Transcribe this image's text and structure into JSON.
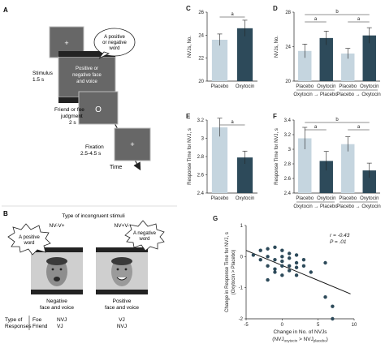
{
  "panel_labels": {
    "A": "A",
    "B": "B",
    "C": "C",
    "D": "D",
    "E": "E",
    "F": "F",
    "G": "G"
  },
  "panel_a": {
    "plus": "+",
    "bubble_line1": "A positive",
    "bubble_line2": "or negative",
    "bubble_line3": "word",
    "face_line1": "Positive or",
    "face_line2": "negative face",
    "face_line3": "and voice",
    "circle": "O",
    "stim_line1": "Stimulus",
    "stim_line2": "1.5 s",
    "judge_line1": "Friend or foe",
    "judge_line2": "judgment",
    "judge_line3": "2 s",
    "fix_line1": "Fixation",
    "fix_line2": "2.5-4.5 s",
    "time_label": "Time"
  },
  "panel_b": {
    "title": "Type of incongruent stimuli",
    "nv1": "NV-V+",
    "nv2": "NV+V-",
    "bubble1_line1": "A positive",
    "bubble1_line2": "word",
    "bubble2_line1": "A negative",
    "bubble2_line2": "word",
    "cap1_line1": "Negative",
    "cap1_line2": "face and voice",
    "cap2_line1": "Positive",
    "cap2_line2": "face and voice",
    "type_of": "Type of",
    "responses": "Responses",
    "foe": "Foe",
    "friend": "Friend",
    "foe_1": "NVJ",
    "friend_1": "VJ",
    "foe_2": "VJ",
    "friend_2": "NVJ"
  },
  "colors": {
    "placebo": "#c5d5df",
    "oxytocin": "#2d4a5a",
    "frame": "#b8b8b8",
    "screen": "#676767"
  },
  "chart_data": [
    {
      "panel": "C",
      "type": "bar",
      "categories": [
        "Placebo",
        "Oxytocin"
      ],
      "values": [
        23.6,
        24.6
      ],
      "errors": [
        0.5,
        0.7
      ],
      "ylabel": "NVJs, No.",
      "ylim": [
        20,
        26
      ],
      "yticks": [
        20,
        22,
        24,
        26
      ],
      "sig": [
        "a"
      ]
    },
    {
      "panel": "D",
      "type": "bar",
      "categories": [
        "Placebo",
        "Oxytocin",
        "Placebo",
        "Oxytocin"
      ],
      "groups": [
        "Oxytocin → Placebo",
        "Placebo → Oxytocin"
      ],
      "values": [
        23.5,
        25.0,
        23.2,
        25.3
      ],
      "errors": [
        0.8,
        0.8,
        0.6,
        0.9
      ],
      "ylabel": "NVJs, No.",
      "ylim": [
        20,
        28
      ],
      "yticks": [
        20,
        24,
        28
      ],
      "sig": [
        "a",
        "a",
        "b"
      ]
    },
    {
      "panel": "E",
      "type": "bar",
      "categories": [
        "Placebo",
        "Oxytocin"
      ],
      "values": [
        3.12,
        2.79
      ],
      "errors": [
        0.1,
        0.07
      ],
      "ylabel": "Response Time for NVJ, s",
      "ylim": [
        2.4,
        3.2
      ],
      "yticks": [
        2.4,
        2.6,
        2.8,
        3.0,
        3.2
      ],
      "sig": [
        "a"
      ]
    },
    {
      "panel": "F",
      "type": "bar",
      "categories": [
        "Placebo",
        "Oxytocin",
        "Placebo",
        "Oxytocin"
      ],
      "groups": [
        "Oxytocin → Placebo",
        "Placebo → Oxytocin"
      ],
      "values": [
        3.15,
        2.84,
        3.07,
        2.71
      ],
      "errors": [
        0.15,
        0.13,
        0.1,
        0.1
      ],
      "ylabel": "Response Time for NVJ, s",
      "ylim": [
        2.4,
        3.4
      ],
      "yticks": [
        2.4,
        2.6,
        2.8,
        3.0,
        3.2,
        3.4
      ],
      "sig": [
        "a",
        "a",
        "b"
      ]
    },
    {
      "panel": "G",
      "type": "scatter",
      "xlabel": "Change in No. of NVJs",
      "xlabel2": "(NVJ",
      "xlabel_sub1": "oxytocin",
      "xlabel_mid": " > NVJ",
      "xlabel_sub2": "placebo",
      "xlabel_end": ")",
      "ylabel_line1": "Change in Response Time for NVJ, s",
      "ylabel_line2": "(Oxytocin > Placebo)",
      "xlim": [
        -5,
        10
      ],
      "xticks": [
        -5,
        0,
        5,
        10
      ],
      "ylim": [
        -2,
        1
      ],
      "yticks": [
        -2,
        -1,
        0,
        1
      ],
      "stat_r": "r = -0.43",
      "stat_p": "P = .01",
      "points": [
        [
          -4,
          0.05
        ],
        [
          -3,
          0.2
        ],
        [
          -3,
          -0.1
        ],
        [
          -2,
          0.25
        ],
        [
          -2,
          0.0
        ],
        [
          -2,
          -0.3
        ],
        [
          -1,
          0.3
        ],
        [
          -1,
          -0.1
        ],
        [
          -1,
          -0.4
        ],
        [
          -1,
          -0.5
        ],
        [
          0,
          0.2
        ],
        [
          0,
          0.0
        ],
        [
          0,
          -0.15
        ],
        [
          0,
          -0.3
        ],
        [
          0,
          -0.6
        ],
        [
          1,
          0.1
        ],
        [
          1,
          -0.05
        ],
        [
          1,
          -0.3
        ],
        [
          1,
          -0.45
        ],
        [
          2,
          0.05
        ],
        [
          2,
          -0.2
        ],
        [
          2,
          -0.35
        ],
        [
          2,
          -0.6
        ],
        [
          3,
          -0.1
        ],
        [
          3,
          -0.3
        ],
        [
          4,
          -0.5
        ],
        [
          6,
          -0.2
        ],
        [
          6,
          -1.3
        ],
        [
          7,
          -1.6
        ],
        [
          7,
          -2.0
        ],
        [
          -2,
          -0.75
        ]
      ],
      "fit": [
        [
          -5,
          0.2
        ],
        [
          9.5,
          -1.2
        ]
      ]
    }
  ]
}
